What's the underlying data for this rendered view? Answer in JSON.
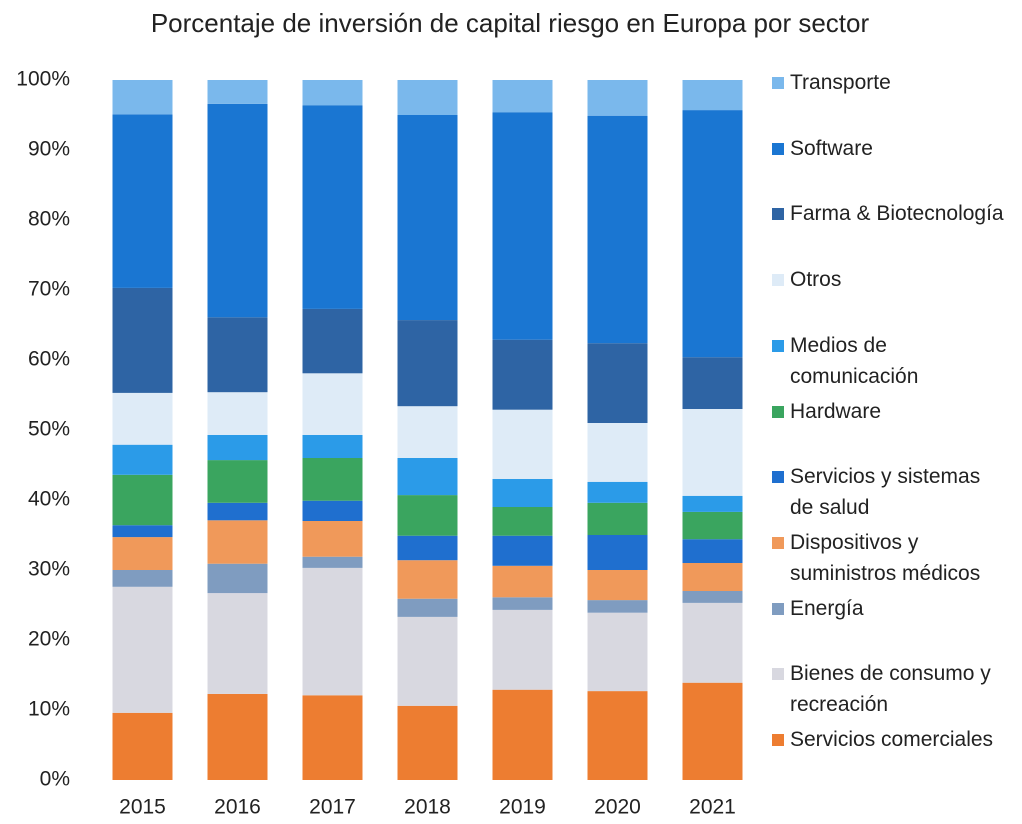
{
  "chart_data": {
    "type": "stacked_bar",
    "title": "Porcentaje de inversión de capital riesgo en Europa por sector",
    "categories": [
      "2015",
      "2016",
      "2017",
      "2018",
      "2019",
      "2020",
      "2021"
    ],
    "ylim": [
      0,
      100
    ],
    "yticks": [
      {
        "value": 0,
        "label": "0%"
      },
      {
        "value": 10,
        "label": "10%"
      },
      {
        "value": 20,
        "label": "20%"
      },
      {
        "value": 30,
        "label": "30%"
      },
      {
        "value": 40,
        "label": "40%"
      },
      {
        "value": 50,
        "label": "50%"
      },
      {
        "value": 60,
        "label": "60%"
      },
      {
        "value": 70,
        "label": "70%"
      },
      {
        "value": 80,
        "label": "80%"
      },
      {
        "value": 90,
        "label": "90%"
      },
      {
        "value": 100,
        "label": "100%"
      }
    ],
    "grid": false,
    "legend": "right",
    "series": [
      {
        "name": "Servicios comerciales",
        "color": "#ed7d31",
        "values": [
          9.6,
          12.3,
          12.1,
          10.6,
          12.9,
          12.7,
          13.9
        ]
      },
      {
        "name": "Bienes de consumo y recreación",
        "color": "#d8d8e0",
        "values": [
          18.0,
          14.4,
          18.2,
          12.7,
          11.4,
          11.2,
          11.4
        ]
      },
      {
        "name": "Energía",
        "color": "#7f9cc0",
        "values": [
          2.4,
          4.2,
          1.6,
          2.6,
          1.8,
          1.8,
          1.7
        ]
      },
      {
        "name": "Dispositivos y suministros médicos",
        "color": "#f0995a",
        "values": [
          4.7,
          6.2,
          5.1,
          5.5,
          4.5,
          4.3,
          4.0
        ]
      },
      {
        "name": "Servicios y sistemas de salud",
        "color": "#1f6fcf",
        "values": [
          1.7,
          2.5,
          2.9,
          3.5,
          4.3,
          5.0,
          3.4
        ]
      },
      {
        "name": "Hardware",
        "color": "#3aa55f",
        "values": [
          7.2,
          6.1,
          6.1,
          5.8,
          4.1,
          4.6,
          3.9
        ]
      },
      {
        "name": "Medios de comunicación",
        "color": "#2b9be8",
        "values": [
          4.3,
          3.6,
          3.3,
          5.3,
          4.0,
          3.0,
          2.3
        ]
      },
      {
        "name": "Otros",
        "color": "#deebf7",
        "values": [
          7.4,
          6.1,
          8.8,
          7.4,
          9.9,
          8.4,
          12.4
        ]
      },
      {
        "name": "Farma & Biotecnología",
        "color": "#2e64a4",
        "values": [
          15.0,
          10.7,
          9.2,
          12.3,
          10.0,
          11.4,
          7.4
        ]
      },
      {
        "name": "Software",
        "color": "#1a76d2",
        "values": [
          24.8,
          30.5,
          29.1,
          29.3,
          32.5,
          32.5,
          35.3
        ]
      },
      {
        "name": "Transporte",
        "color": "#7ab8ec",
        "values": [
          4.9,
          3.4,
          3.6,
          5.0,
          4.6,
          5.1,
          4.3
        ]
      }
    ]
  }
}
